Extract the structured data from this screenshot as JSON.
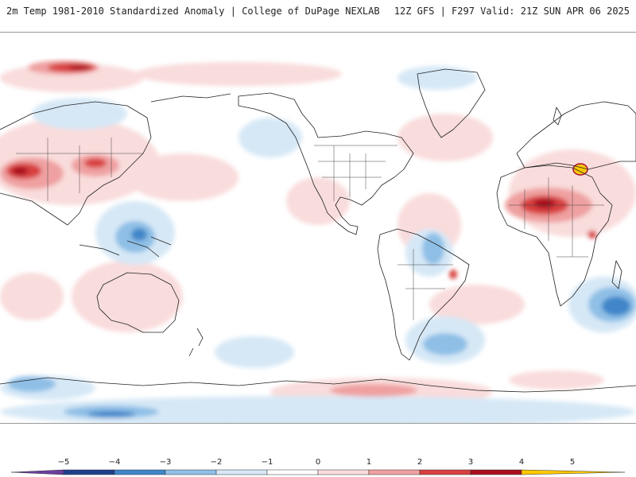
{
  "header": {
    "title": "2m Temp 1981-2010 Standardized Anomaly | College of DuPage NEXLAB",
    "run_info": "12Z GFS | F297 Valid: 21Z SUN APR 06 2025"
  },
  "map": {
    "projection": "global equirectangular",
    "palette": {
      "neg5": "#6a3fa0",
      "neg4": "#1f3f8c",
      "neg3": "#3f86c9",
      "neg2": "#8fbfe6",
      "neg1": "#d6e8f6",
      "zero": "#ffffff",
      "pos1": "#f9dcdc",
      "pos2": "#efa0a0",
      "pos3": "#d84040",
      "pos4": "#a80f1e",
      "pos5": "#ffc800"
    }
  },
  "colorbar": {
    "labels": [
      "−5",
      "−4",
      "−3",
      "−2",
      "−1",
      "0",
      "1",
      "2",
      "3",
      "4",
      "5"
    ],
    "colors": [
      "#6a3fa0",
      "#1f3f8c",
      "#3f86c9",
      "#8fbfe6",
      "#d6e8f6",
      "#ffffff",
      "#f9dcdc",
      "#efa0a0",
      "#d84040",
      "#a80f1e",
      "#ffc800"
    ]
  }
}
